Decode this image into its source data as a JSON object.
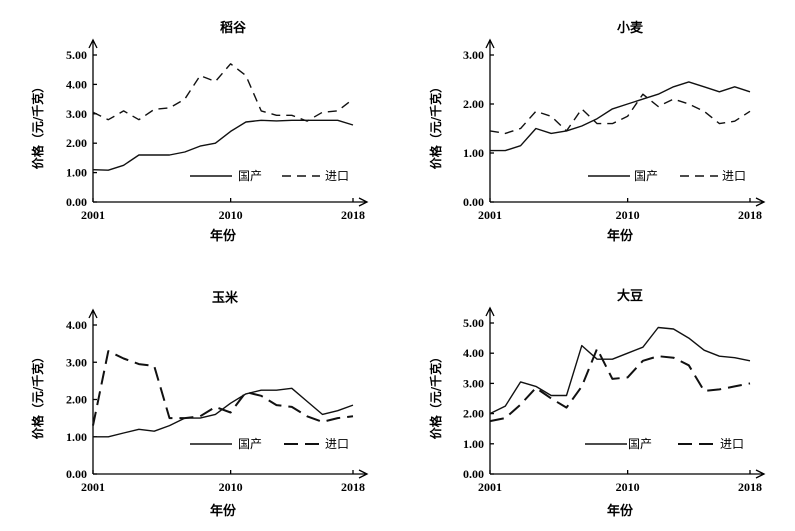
{
  "chart_data": [
    {
      "type": "line",
      "title": "稻谷",
      "xlabel": "年份",
      "ylabel": "价格（元/千克）",
      "xticks": [
        "2001",
        "2010",
        "2018"
      ],
      "yticks": [
        "0.00",
        "1.00",
        "2.00",
        "3.00",
        "4.00",
        "5.00"
      ],
      "xlim": [
        2001,
        2018
      ],
      "ylim": [
        0,
        5
      ],
      "x": [
        2001,
        2002,
        2003,
        2004,
        2005,
        2006,
        2007,
        2008,
        2009,
        2010,
        2011,
        2012,
        2013,
        2014,
        2015,
        2016,
        2017,
        2018
      ],
      "series": [
        {
          "name": "国产",
          "style": "solid",
          "values": [
            1.1,
            1.08,
            1.25,
            1.6,
            1.6,
            1.6,
            1.7,
            1.9,
            2.0,
            2.4,
            2.72,
            2.78,
            2.76,
            2.78,
            2.78,
            2.78,
            2.78,
            2.62
          ]
        },
        {
          "name": "进口",
          "style": "dashed",
          "values": [
            3.05,
            2.8,
            3.1,
            2.8,
            3.15,
            3.2,
            3.5,
            4.3,
            4.1,
            4.7,
            4.3,
            3.1,
            2.95,
            2.95,
            2.75,
            3.05,
            3.1,
            3.5
          ]
        }
      ]
    },
    {
      "type": "line",
      "title": "小麦",
      "xlabel": "年份",
      "ylabel": "价格（元/千克）",
      "xticks": [
        "2001",
        "2010",
        "2018"
      ],
      "yticks": [
        "0.00",
        "1.00",
        "2.00",
        "3.00"
      ],
      "xlim": [
        2001,
        2018
      ],
      "ylim": [
        0,
        3
      ],
      "x": [
        2001,
        2002,
        2003,
        2004,
        2005,
        2006,
        2007,
        2008,
        2009,
        2010,
        2011,
        2012,
        2013,
        2014,
        2015,
        2016,
        2017,
        2018
      ],
      "series": [
        {
          "name": "国产",
          "style": "solid",
          "values": [
            1.05,
            1.05,
            1.15,
            1.5,
            1.4,
            1.45,
            1.55,
            1.7,
            1.9,
            2.0,
            2.1,
            2.2,
            2.35,
            2.45,
            2.35,
            2.25,
            2.35,
            2.25
          ]
        },
        {
          "name": "进口",
          "style": "dashed",
          "values": [
            1.45,
            1.4,
            1.5,
            1.85,
            1.75,
            1.45,
            1.9,
            1.6,
            1.6,
            1.75,
            2.2,
            1.95,
            2.1,
            2.0,
            1.85,
            1.6,
            1.65,
            1.85
          ]
        }
      ]
    },
    {
      "type": "line",
      "title": "玉米",
      "xlabel": "年份",
      "ylabel": "价格（元/千克）",
      "xticks": [
        "2001",
        "2010",
        "2018"
      ],
      "yticks": [
        "0.00",
        "1.00",
        "2.00",
        "3.00",
        "4.00"
      ],
      "xlim": [
        2001,
        2018
      ],
      "ylim": [
        0,
        4
      ],
      "x": [
        2001,
        2002,
        2003,
        2004,
        2005,
        2006,
        2007,
        2008,
        2009,
        2010,
        2011,
        2012,
        2013,
        2014,
        2015,
        2016,
        2017,
        2018
      ],
      "series": [
        {
          "name": "国产",
          "style": "solid",
          "values": [
            1.0,
            1.0,
            1.1,
            1.2,
            1.15,
            1.3,
            1.5,
            1.5,
            1.6,
            1.9,
            2.15,
            2.25,
            2.25,
            2.3,
            1.95,
            1.6,
            1.7,
            1.85
          ]
        },
        {
          "name": "进口",
          "style": "longdash",
          "values": [
            1.3,
            3.3,
            3.1,
            2.95,
            2.9,
            1.5,
            1.5,
            1.55,
            1.8,
            1.65,
            2.2,
            2.1,
            1.85,
            1.8,
            1.55,
            1.4,
            1.5,
            1.55
          ]
        }
      ]
    },
    {
      "type": "line",
      "title": "大豆",
      "xlabel": "年份",
      "ylabel": "价格（元/千克）",
      "xticks": [
        "2001",
        "2010",
        "2018"
      ],
      "yticks": [
        "0.00",
        "1.00",
        "2.00",
        "3.00",
        "4.00",
        "5.00"
      ],
      "xlim": [
        2001,
        2018
      ],
      "ylim": [
        0,
        5
      ],
      "x": [
        2001,
        2002,
        2003,
        2004,
        2005,
        2006,
        2007,
        2008,
        2009,
        2010,
        2011,
        2012,
        2013,
        2014,
        2015,
        2016,
        2017,
        2018
      ],
      "series": [
        {
          "name": "国产",
          "style": "solid",
          "values": [
            2.0,
            2.25,
            3.05,
            2.9,
            2.6,
            2.6,
            4.25,
            3.8,
            3.8,
            4.0,
            4.2,
            4.85,
            4.8,
            4.5,
            4.1,
            3.9,
            3.85,
            3.75
          ]
        },
        {
          "name": "进口",
          "style": "longdash",
          "values": [
            1.75,
            1.85,
            2.3,
            2.85,
            2.5,
            2.2,
            2.9,
            4.15,
            3.15,
            3.2,
            3.75,
            3.9,
            3.85,
            3.6,
            2.75,
            2.8,
            2.9,
            3.0
          ]
        }
      ]
    }
  ]
}
